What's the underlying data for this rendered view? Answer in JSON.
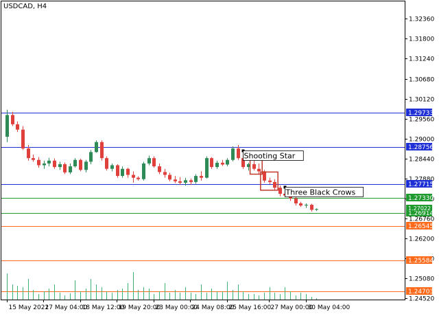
{
  "chart_data": {
    "type": "candlestick",
    "title": "USDCAD, H4",
    "ylim": [
      1.2448,
      1.3285
    ],
    "y_ticks": [
      "1.32360",
      "1.31800",
      "1.31240",
      "1.30680",
      "1.30120",
      "1.29560",
      "1.29000",
      "1.28440",
      "1.27880",
      "1.27320",
      "1.26760",
      "1.26200",
      "1.25640",
      "1.25080",
      "1.24520"
    ],
    "x_ticks": [
      "15 May 2022",
      "17 May 04:00",
      "18 May 12:00",
      "19 May 20:00",
      "23 May 00:00",
      "24 May 08:00",
      "25 May 16:00",
      "27 May 00:00",
      "30 May 04:00"
    ],
    "colors": {
      "up": "#2e8b57",
      "down": "#e0403c",
      "resistance": "#1f2fd6",
      "support": "#1e9a2e",
      "lower": "#ff6a1a",
      "volume": "#3cb371"
    },
    "levels": [
      {
        "price": 1.29733,
        "label": "1.29733",
        "kind": "resistance"
      },
      {
        "price": 1.28756,
        "label": "1.28756",
        "kind": "resistance"
      },
      {
        "price": 1.27715,
        "label": "1.27715",
        "kind": "resistance"
      },
      {
        "price": 1.2733,
        "label": "1.27330",
        "kind": "support"
      },
      {
        "price": 1.26914,
        "label": "1.26914",
        "kind": "support"
      },
      {
        "price": 1.26545,
        "label": "1.26545",
        "kind": "lower"
      },
      {
        "price": 1.25584,
        "label": "1.25584",
        "kind": "lower"
      },
      {
        "price": 1.24703,
        "label": "1.24703",
        "kind": "lower"
      }
    ],
    "current_price": {
      "price": 1.27022,
      "label": "1.27022"
    },
    "annotations": [
      {
        "text": "Shooting Star",
        "candle": 45
      },
      {
        "text": "Three Black Crows",
        "candle": 53
      }
    ],
    "pattern_boxes": [
      {
        "from": 47,
        "to": 48,
        "low": 1.28,
        "high": 1.2848
      },
      {
        "from": 49,
        "to": 51,
        "low": 1.2755,
        "high": 1.2806
      }
    ],
    "candles": [
      {
        "o": 1.2905,
        "h": 1.2981,
        "l": 1.289,
        "c": 1.2966
      },
      {
        "o": 1.2966,
        "h": 1.2975,
        "l": 1.2935,
        "c": 1.294
      },
      {
        "o": 1.294,
        "h": 1.2948,
        "l": 1.2918,
        "c": 1.2925
      },
      {
        "o": 1.2925,
        "h": 1.2935,
        "l": 1.2868,
        "c": 1.2872
      },
      {
        "o": 1.2872,
        "h": 1.2882,
        "l": 1.2838,
        "c": 1.2845
      },
      {
        "o": 1.2845,
        "h": 1.2855,
        "l": 1.2835,
        "c": 1.284
      },
      {
        "o": 1.284,
        "h": 1.2848,
        "l": 1.2818,
        "c": 1.2825
      },
      {
        "o": 1.2825,
        "h": 1.2838,
        "l": 1.2815,
        "c": 1.283
      },
      {
        "o": 1.283,
        "h": 1.2846,
        "l": 1.2822,
        "c": 1.2838
      },
      {
        "o": 1.2838,
        "h": 1.2844,
        "l": 1.2815,
        "c": 1.282
      },
      {
        "o": 1.282,
        "h": 1.2835,
        "l": 1.2812,
        "c": 1.2828
      },
      {
        "o": 1.2828,
        "h": 1.2833,
        "l": 1.28,
        "c": 1.2805
      },
      {
        "o": 1.2805,
        "h": 1.283,
        "l": 1.28,
        "c": 1.2822
      },
      {
        "o": 1.2822,
        "h": 1.2845,
        "l": 1.2818,
        "c": 1.284
      },
      {
        "o": 1.284,
        "h": 1.2843,
        "l": 1.2808,
        "c": 1.2812
      },
      {
        "o": 1.2812,
        "h": 1.284,
        "l": 1.2805,
        "c": 1.2835
      },
      {
        "o": 1.2835,
        "h": 1.2868,
        "l": 1.2828,
        "c": 1.2862
      },
      {
        "o": 1.2862,
        "h": 1.2895,
        "l": 1.286,
        "c": 1.289
      },
      {
        "o": 1.289,
        "h": 1.2895,
        "l": 1.2838,
        "c": 1.2845
      },
      {
        "o": 1.2845,
        "h": 1.285,
        "l": 1.281,
        "c": 1.2815
      },
      {
        "o": 1.2815,
        "h": 1.283,
        "l": 1.2808,
        "c": 1.2825
      },
      {
        "o": 1.2825,
        "h": 1.2828,
        "l": 1.279,
        "c": 1.2795
      },
      {
        "o": 1.2795,
        "h": 1.2822,
        "l": 1.279,
        "c": 1.2815
      },
      {
        "o": 1.2815,
        "h": 1.2818,
        "l": 1.279,
        "c": 1.2798
      },
      {
        "o": 1.2798,
        "h": 1.2808,
        "l": 1.2776,
        "c": 1.279
      },
      {
        "o": 1.279,
        "h": 1.2794,
        "l": 1.2782,
        "c": 1.2786
      },
      {
        "o": 1.2786,
        "h": 1.2835,
        "l": 1.2782,
        "c": 1.283
      },
      {
        "o": 1.283,
        "h": 1.2852,
        "l": 1.2825,
        "c": 1.2845
      },
      {
        "o": 1.2845,
        "h": 1.285,
        "l": 1.2818,
        "c": 1.2822
      },
      {
        "o": 1.2822,
        "h": 1.283,
        "l": 1.28,
        "c": 1.2806
      },
      {
        "o": 1.2806,
        "h": 1.2815,
        "l": 1.279,
        "c": 1.2798
      },
      {
        "o": 1.2798,
        "h": 1.2804,
        "l": 1.278,
        "c": 1.2785
      },
      {
        "o": 1.2785,
        "h": 1.2795,
        "l": 1.2775,
        "c": 1.278
      },
      {
        "o": 1.278,
        "h": 1.2792,
        "l": 1.277,
        "c": 1.2776
      },
      {
        "o": 1.2776,
        "h": 1.279,
        "l": 1.2768,
        "c": 1.2783
      },
      {
        "o": 1.2783,
        "h": 1.2788,
        "l": 1.277,
        "c": 1.2778
      },
      {
        "o": 1.2778,
        "h": 1.28,
        "l": 1.2773,
        "c": 1.2795
      },
      {
        "o": 1.2795,
        "h": 1.2808,
        "l": 1.2782,
        "c": 1.279
      },
      {
        "o": 1.279,
        "h": 1.285,
        "l": 1.2788,
        "c": 1.2845
      },
      {
        "o": 1.2845,
        "h": 1.2848,
        "l": 1.2815,
        "c": 1.282
      },
      {
        "o": 1.282,
        "h": 1.2838,
        "l": 1.2815,
        "c": 1.2832
      },
      {
        "o": 1.2832,
        "h": 1.284,
        "l": 1.2823,
        "c": 1.2827
      },
      {
        "o": 1.2827,
        "h": 1.2845,
        "l": 1.2822,
        "c": 1.284
      },
      {
        "o": 1.284,
        "h": 1.2878,
        "l": 1.2836,
        "c": 1.2872
      },
      {
        "o": 1.2872,
        "h": 1.2882,
        "l": 1.284,
        "c": 1.2845
      },
      {
        "o": 1.2845,
        "h": 1.285,
        "l": 1.2815,
        "c": 1.282
      },
      {
        "o": 1.282,
        "h": 1.2832,
        "l": 1.281,
        "c": 1.2828
      },
      {
        "o": 1.2828,
        "h": 1.2846,
        "l": 1.281,
        "c": 1.2815
      },
      {
        "o": 1.2815,
        "h": 1.283,
        "l": 1.28,
        "c": 1.2808
      },
      {
        "o": 1.2808,
        "h": 1.2812,
        "l": 1.2776,
        "c": 1.2782
      },
      {
        "o": 1.2782,
        "h": 1.279,
        "l": 1.2772,
        "c": 1.2778
      },
      {
        "o": 1.2778,
        "h": 1.2786,
        "l": 1.2756,
        "c": 1.2762
      },
      {
        "o": 1.2762,
        "h": 1.2768,
        "l": 1.2738,
        "c": 1.2745
      },
      {
        "o": 1.2745,
        "h": 1.2752,
        "l": 1.2735,
        "c": 1.274
      },
      {
        "o": 1.274,
        "h": 1.2746,
        "l": 1.2725,
        "c": 1.2732
      },
      {
        "o": 1.2732,
        "h": 1.2736,
        "l": 1.2712,
        "c": 1.2718
      },
      {
        "o": 1.2718,
        "h": 1.2722,
        "l": 1.2708,
        "c": 1.2712
      },
      {
        "o": 1.2712,
        "h": 1.2718,
        "l": 1.2705,
        "c": 1.2714
      },
      {
        "o": 1.2714,
        "h": 1.2717,
        "l": 1.2695,
        "c": 1.27
      },
      {
        "o": 1.27,
        "h": 1.2704,
        "l": 1.2697,
        "c": 1.2702
      }
    ],
    "volumes": [
      38,
      22,
      20,
      18,
      30,
      14,
      8,
      12,
      16,
      22,
      10,
      6,
      9,
      28,
      12,
      16,
      30,
      22,
      18,
      12,
      10,
      14,
      16,
      24,
      40,
      14,
      18,
      16,
      8,
      12,
      24,
      10,
      14,
      10,
      18,
      10,
      8,
      22,
      10,
      16,
      12,
      12,
      26,
      14,
      22,
      12,
      8,
      8,
      6,
      10,
      18,
      10,
      8,
      18,
      12,
      6,
      10,
      8,
      4,
      2
    ]
  }
}
